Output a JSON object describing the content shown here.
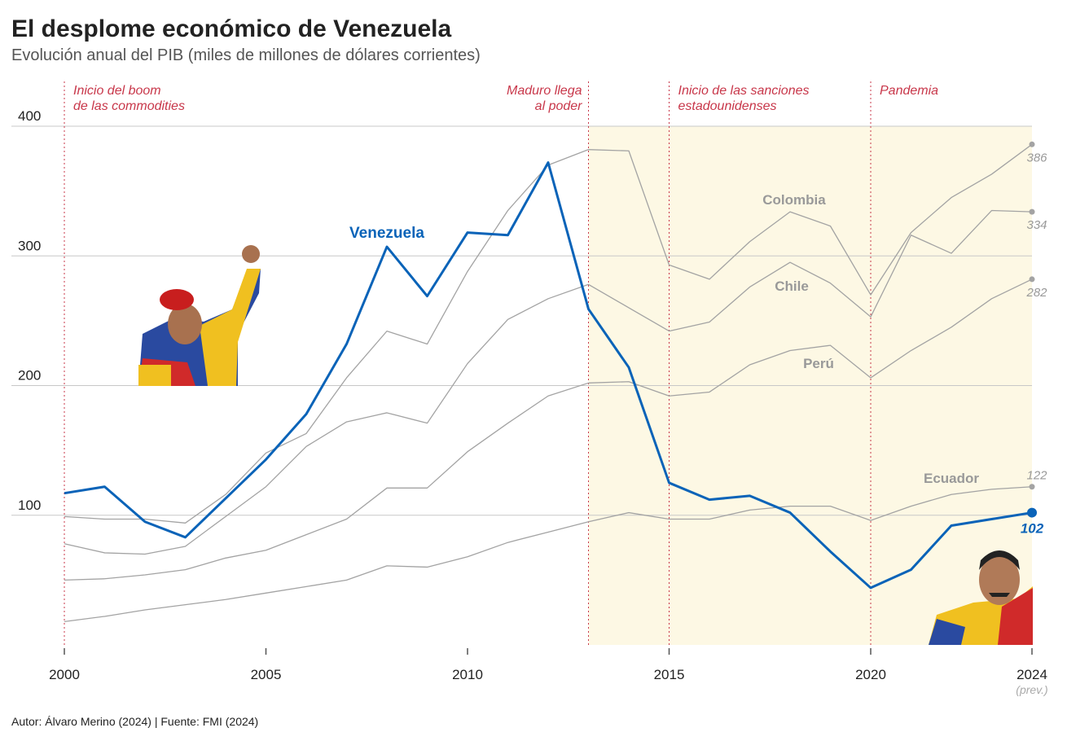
{
  "title": "El desplome económico de Venezuela",
  "subtitle": "Evolución anual del PIB (miles de millones de dólares corrientes)",
  "footer": "Autor: Álvaro Merino (2024) | Fuente: FMI (2024)",
  "colors": {
    "venezuela": "#0a63b8",
    "others": "#a3a3a3",
    "events": "#c8374a",
    "shade": "#fdf8e4"
  },
  "chart_data": {
    "type": "line",
    "title": "El desplome económico de Venezuela",
    "subtitle": "Evolución anual del PIB (miles de millones de dólares corrientes)",
    "xlabel": "",
    "ylabel": "",
    "xlim": [
      2000,
      2024
    ],
    "ylim": [
      0,
      400
    ],
    "grid": true,
    "yticks": [
      "100",
      "200",
      "300",
      "400"
    ],
    "xticks": [
      "2000",
      "2005",
      "2010",
      "2015",
      "2020",
      "2024"
    ],
    "x_note": "(prev.)",
    "x": [
      2000,
      2001,
      2002,
      2003,
      2004,
      2005,
      2006,
      2007,
      2008,
      2009,
      2010,
      2011,
      2012,
      2013,
      2014,
      2015,
      2016,
      2017,
      2018,
      2019,
      2020,
      2021,
      2022,
      2023,
      2024
    ],
    "series": [
      {
        "name": "Colombia",
        "end_label": "386",
        "values": [
          99,
          97,
          97,
          94,
          116,
          148,
          163,
          206,
          242,
          232,
          288,
          335,
          370,
          382,
          381,
          293,
          282,
          311,
          334,
          323,
          270,
          318,
          345,
          363,
          386
        ]
      },
      {
        "name": "Chile",
        "end_label": "334",
        "values": [
          78,
          71,
          70,
          76,
          99,
          122,
          153,
          172,
          179,
          171,
          217,
          251,
          267,
          278,
          260,
          242,
          249,
          276,
          295,
          279,
          253,
          316,
          302,
          335,
          334
        ]
      },
      {
        "name": "Perú",
        "end_label": "282",
        "values": [
          50,
          51,
          54,
          58,
          67,
          73,
          85,
          97,
          121,
          121,
          149,
          171,
          192,
          202,
          203,
          192,
          195,
          216,
          227,
          231,
          206,
          227,
          245,
          267,
          282
        ]
      },
      {
        "name": "Ecuador",
        "end_label": "122",
        "values": [
          18,
          22,
          27,
          31,
          35,
          40,
          45,
          50,
          61,
          60,
          68,
          79,
          87,
          95,
          102,
          97,
          97,
          104,
          107,
          107,
          96,
          107,
          116,
          120,
          122
        ]
      },
      {
        "name": "Venezuela",
        "end_label": "102",
        "values": [
          117,
          122,
          95,
          83,
          113,
          143,
          178,
          232,
          307,
          269,
          318,
          316,
          372,
          259,
          214,
          125,
          112,
          115,
          102,
          72,
          44,
          58,
          92,
          97,
          102
        ]
      }
    ],
    "annotations": [
      {
        "x": 2000,
        "text": [
          "Inicio del boom",
          "de las commodities"
        ]
      },
      {
        "x": 2013,
        "text": [
          "Maduro llega",
          "al poder"
        ]
      },
      {
        "x": 2015,
        "text": [
          "Inicio de las sanciones",
          "estadounidenses"
        ]
      },
      {
        "x": 2020,
        "text": [
          "Pandemia"
        ]
      }
    ],
    "shaded_range": [
      2013,
      2024
    ]
  }
}
